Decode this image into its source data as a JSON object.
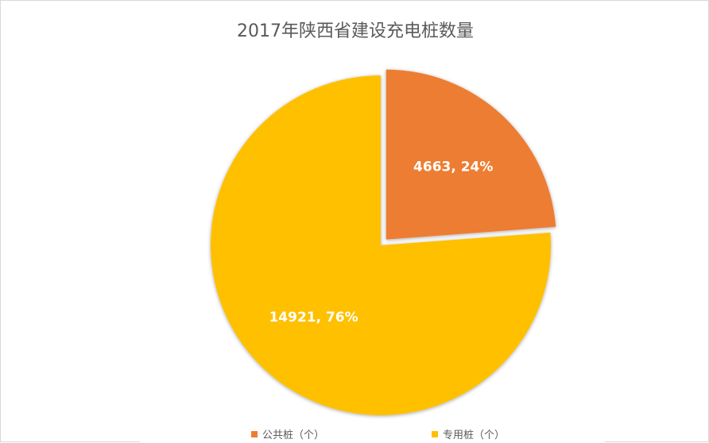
{
  "chart_data": {
    "type": "pie",
    "title": "2017年陕西省建设充电桩数量",
    "slices": [
      {
        "name": "公共桩（个）",
        "value": 4663,
        "percent": "24%",
        "label": "4663, 24%",
        "color": "#ED7D31",
        "exploded": true
      },
      {
        "name": "专用桩（个）",
        "value": 14921,
        "percent": "76%",
        "label": "14921, 76%",
        "color": "#FFC000",
        "exploded": false
      }
    ],
    "legend_position": "bottom"
  }
}
